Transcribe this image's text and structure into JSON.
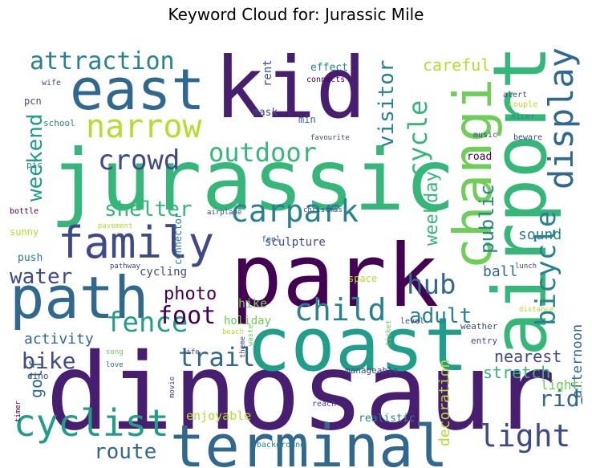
{
  "title": "Keyword Cloud for: Jurassic Mile",
  "chart_data": {
    "type": "wordcloud",
    "words": [
      {
        "text": "dinosaur",
        "weight": 1.0,
        "color": "#481f70",
        "orientation": "horizontal"
      },
      {
        "text": "jurassic",
        "weight": 0.93,
        "color": "#35b779",
        "orientation": "horizontal"
      },
      {
        "text": "kid",
        "weight": 0.8,
        "color": "#481f70",
        "orientation": "horizontal"
      },
      {
        "text": "park",
        "weight": 0.9,
        "color": "#440154",
        "orientation": "horizontal"
      },
      {
        "text": "airport",
        "weight": 0.76,
        "color": "#35b779",
        "orientation": "vertical"
      },
      {
        "text": "coast",
        "weight": 0.8,
        "color": "#1f9e89",
        "orientation": "horizontal"
      },
      {
        "text": "terminal",
        "weight": 0.68,
        "color": "#31688e",
        "orientation": "horizontal"
      },
      {
        "text": "east",
        "weight": 0.6,
        "color": "#31688e",
        "orientation": "horizontal"
      },
      {
        "text": "path",
        "weight": 0.6,
        "color": "#31688e",
        "orientation": "horizontal"
      },
      {
        "text": "changi",
        "weight": 0.55,
        "color": "#6ece58",
        "orientation": "vertical"
      },
      {
        "text": "family",
        "weight": 0.46,
        "color": "#3e4989",
        "orientation": "horizontal"
      },
      {
        "text": "cyclist",
        "weight": 0.4,
        "color": "#1f9e89",
        "orientation": "horizontal"
      },
      {
        "text": "display",
        "weight": 0.34,
        "color": "#31688e",
        "orientation": "vertical"
      },
      {
        "text": "narrow",
        "weight": 0.34,
        "color": "#b5de2b",
        "orientation": "horizontal"
      },
      {
        "text": "carpark",
        "weight": 0.32,
        "color": "#26828e",
        "orientation": "horizontal"
      },
      {
        "text": "child",
        "weight": 0.32,
        "color": "#26828e",
        "orientation": "horizontal"
      },
      {
        "text": "light",
        "weight": 0.32,
        "color": "#3e4989",
        "orientation": "horizontal"
      },
      {
        "text": "bicycle",
        "weight": 0.3,
        "color": "#26828e",
        "orientation": "vertical"
      },
      {
        "text": "fence",
        "weight": 0.28,
        "color": "#1f9e89",
        "orientation": "horizontal"
      },
      {
        "text": "crowd",
        "weight": 0.28,
        "color": "#3e4989",
        "orientation": "horizontal"
      },
      {
        "text": "outdoor",
        "weight": 0.28,
        "color": "#35b779",
        "orientation": "horizontal"
      },
      {
        "text": "attraction",
        "weight": 0.24,
        "color": "#26828e",
        "orientation": "horizontal"
      },
      {
        "text": "cycle",
        "weight": 0.28,
        "color": "#35b779",
        "orientation": "vertical"
      },
      {
        "text": "hub",
        "weight": 0.28,
        "color": "#31688e",
        "orientation": "horizontal"
      },
      {
        "text": "trail",
        "weight": 0.26,
        "color": "#31688e",
        "orientation": "horizontal"
      },
      {
        "text": "foot",
        "weight": 0.24,
        "color": "#440154",
        "orientation": "horizontal"
      },
      {
        "text": "route",
        "weight": 0.22,
        "color": "#31688e",
        "orientation": "horizontal"
      },
      {
        "text": "ride",
        "weight": 0.22,
        "color": "#31688e",
        "orientation": "horizontal"
      },
      {
        "text": "bike",
        "weight": 0.22,
        "color": "#3e4989",
        "orientation": "horizontal"
      },
      {
        "text": "shelter",
        "weight": 0.22,
        "color": "#35b779",
        "orientation": "horizontal"
      },
      {
        "text": "weekend",
        "weight": 0.22,
        "color": "#1f9e89",
        "orientation": "vertical"
      },
      {
        "text": "visitor",
        "weight": 0.2,
        "color": "#26828e",
        "orientation": "vertical"
      },
      {
        "text": "water",
        "weight": 0.2,
        "color": "#3e4989",
        "orientation": "horizontal"
      },
      {
        "text": "adult",
        "weight": 0.2,
        "color": "#26828e",
        "orientation": "horizontal"
      },
      {
        "text": "public",
        "weight": 0.18,
        "color": "#26828e",
        "orientation": "vertical"
      },
      {
        "text": "weekday",
        "weight": 0.16,
        "color": "#35b779",
        "orientation": "vertical"
      },
      {
        "text": "photo",
        "weight": 0.16,
        "color": "#440154",
        "orientation": "horizontal"
      },
      {
        "text": "stretch",
        "weight": 0.16,
        "color": "#35b779",
        "orientation": "horizontal"
      },
      {
        "text": "nearest",
        "weight": 0.16,
        "color": "#3e4989",
        "orientation": "horizontal"
      },
      {
        "text": "careful",
        "weight": 0.15,
        "color": "#b5de2b",
        "orientation": "horizontal"
      },
      {
        "text": "golf",
        "weight": 0.15,
        "color": "#31688e",
        "orientation": "vertical"
      },
      {
        "text": "activity",
        "weight": 0.14,
        "color": "#31688e",
        "orientation": "horizontal"
      },
      {
        "text": "sound",
        "weight": 0.14,
        "color": "#26828e",
        "orientation": "horizontal"
      },
      {
        "text": "ball",
        "weight": 0.14,
        "color": "#31688e",
        "orientation": "horizontal"
      },
      {
        "text": "decoration",
        "weight": 0.14,
        "color": "#b5de2b",
        "orientation": "vertical"
      },
      {
        "text": "afternoon",
        "weight": 0.13,
        "color": "#31688e",
        "orientation": "vertical"
      },
      {
        "text": "lighting",
        "weight": 0.13,
        "color": "#6ece58",
        "orientation": "horizontal"
      },
      {
        "text": "enjoyable",
        "weight": 0.12,
        "color": "#b5de2b",
        "orientation": "horizontal"
      },
      {
        "text": "hike",
        "weight": 0.12,
        "color": "#6ece58",
        "orientation": "horizontal"
      },
      {
        "text": "holiday",
        "weight": 0.12,
        "color": "#6ece58",
        "orientation": "horizontal"
      },
      {
        "text": "cycling",
        "weight": 0.11,
        "color": "#3e4989",
        "orientation": "horizontal"
      },
      {
        "text": "sculpture",
        "weight": 0.11,
        "color": "#3e4989",
        "orientation": "horizontal"
      },
      {
        "text": "push",
        "weight": 0.1,
        "color": "#26828e",
        "orientation": "horizontal"
      },
      {
        "text": "rent",
        "weight": 0.1,
        "color": "#3e4989",
        "orientation": "vertical"
      },
      {
        "text": "effect",
        "weight": 0.1,
        "color": "#26828e",
        "orientation": "horizontal"
      },
      {
        "text": "mask",
        "weight": 0.1,
        "color": "#3e4989",
        "orientation": "horizontal"
      },
      {
        "text": "realistic",
        "weight": 0.1,
        "color": "#26828e",
        "orientation": "horizontal"
      },
      {
        "text": "road",
        "weight": 0.1,
        "color": "#440154",
        "orientation": "horizontal"
      },
      {
        "text": "space",
        "weight": 0.09,
        "color": "#b5de2b",
        "orientation": "horizontal"
      },
      {
        "text": "connector",
        "weight": 0.09,
        "color": "#26828e",
        "orientation": "vertical"
      },
      {
        "text": "sunny",
        "weight": 0.09,
        "color": "#b5de2b",
        "orientation": "horizontal"
      },
      {
        "text": "pcn",
        "weight": 0.09,
        "color": "#3e4989",
        "orientation": "horizontal"
      },
      {
        "text": "school",
        "weight": 0.08,
        "color": "#26828e",
        "orientation": "horizontal"
      },
      {
        "text": "min",
        "weight": 0.08,
        "color": "#31688e",
        "orientation": "horizontal"
      },
      {
        "text": "pic",
        "weight": 0.08,
        "color": "#26828e",
        "orientation": "horizontal"
      },
      {
        "text": "dino",
        "weight": 0.08,
        "color": "#3e4989",
        "orientation": "horizontal"
      },
      {
        "text": "manageable",
        "weight": 0.08,
        "color": "#3e4989",
        "orientation": "horizontal"
      },
      {
        "text": "weather",
        "weight": 0.08,
        "color": "#3e4989",
        "orientation": "horizontal"
      },
      {
        "text": "entry",
        "weight": 0.08,
        "color": "#3e4989",
        "orientation": "horizontal"
      },
      {
        "text": "level",
        "weight": 0.08,
        "color": "#3e4989",
        "orientation": "horizontal"
      },
      {
        "text": "feel",
        "weight": 0.08,
        "color": "#31688e",
        "orientation": "horizontal"
      },
      {
        "text": "bottle",
        "weight": 0.08,
        "color": "#440154",
        "orientation": "horizontal"
      },
      {
        "text": "background",
        "weight": 0.08,
        "color": "#26828e",
        "orientation": "horizontal"
      },
      {
        "text": "exhibition",
        "weight": 0.08,
        "color": "#b5de2b",
        "orientation": "horizontal"
      },
      {
        "text": "description",
        "weight": 0.08,
        "color": "#26828e",
        "orientation": "horizontal"
      },
      {
        "text": "reach",
        "weight": 0.08,
        "color": "#3e4989",
        "orientation": "horizontal"
      },
      {
        "text": "chill",
        "weight": 0.08,
        "color": "#31688e",
        "orientation": "horizontal"
      },
      {
        "text": "music",
        "weight": 0.07,
        "color": "#3e4989",
        "orientation": "horizontal"
      },
      {
        "text": "beware",
        "weight": 0.07,
        "color": "#3e4989",
        "orientation": "horizontal"
      },
      {
        "text": "alert",
        "weight": 0.07,
        "color": "#3e4989",
        "orientation": "horizontal"
      },
      {
        "text": "nicer",
        "weight": 0.07,
        "color": "#26828e",
        "orientation": "horizontal"
      },
      {
        "text": "couple",
        "weight": 0.07,
        "color": "#b5de2b",
        "orientation": "horizontal"
      },
      {
        "text": "wife",
        "weight": 0.07,
        "color": "#3e4989",
        "orientation": "horizontal"
      },
      {
        "text": "connects",
        "weight": 0.07,
        "color": "#440154",
        "orientation": "horizontal"
      },
      {
        "text": "favourite",
        "weight": 0.07,
        "color": "#3e4989",
        "orientation": "horizontal"
      },
      {
        "text": "christmas",
        "weight": 0.07,
        "color": "#3e4989",
        "orientation": "horizontal"
      },
      {
        "text": "airplane",
        "weight": 0.07,
        "color": "#3e4989",
        "orientation": "horizontal"
      },
      {
        "text": "pavement",
        "weight": 0.07,
        "color": "#b5de2b",
        "orientation": "horizontal"
      },
      {
        "text": "pathway",
        "weight": 0.07,
        "color": "#3e4989",
        "orientation": "horizontal"
      },
      {
        "text": "lunch",
        "weight": 0.07,
        "color": "#3e4989",
        "orientation": "horizontal"
      },
      {
        "text": "distance",
        "weight": 0.07,
        "color": "#b5de2b",
        "orientation": "horizontal"
      },
      {
        "text": "beach",
        "weight": 0.07,
        "color": "#b5de2b",
        "orientation": "horizontal"
      },
      {
        "text": "song",
        "weight": 0.07,
        "color": "#6ece58",
        "orientation": "horizontal"
      },
      {
        "text": "love",
        "weight": 0.07,
        "color": "#31688e",
        "orientation": "horizontal"
      },
      {
        "text": "life",
        "weight": 0.07,
        "color": "#3e4989",
        "orientation": "horizontal"
      },
      {
        "text": "movie",
        "weight": 0.07,
        "color": "#3e4989",
        "orientation": "vertical"
      },
      {
        "text": "timer",
        "weight": 0.07,
        "color": "#440154",
        "orientation": "vertical"
      },
      {
        "text": "theme",
        "weight": 0.07,
        "color": "#3e4989",
        "orientation": "vertical"
      },
      {
        "text": "waste",
        "weight": 0.07,
        "color": "#6ece58",
        "orientation": "vertical"
      },
      {
        "text": "ticket",
        "weight": 0.07,
        "color": "#6ece58",
        "orientation": "vertical"
      }
    ]
  }
}
